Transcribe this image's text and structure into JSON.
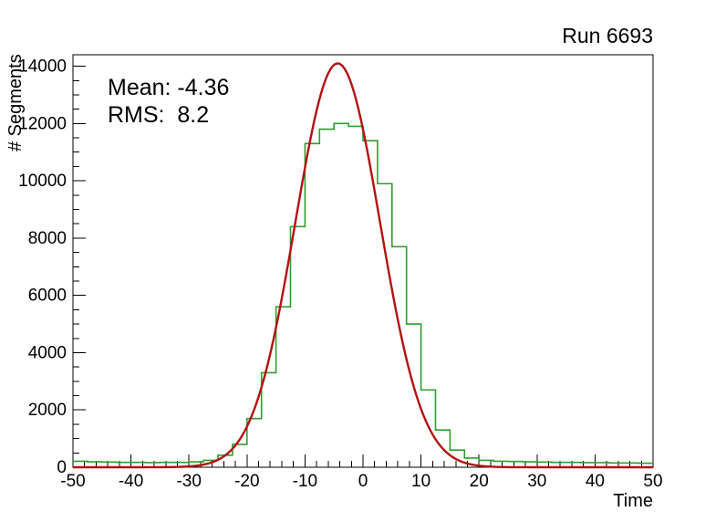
{
  "chart_data": {
    "type": "bar",
    "subtype": "step-histogram-with-gaussian-fit",
    "title": "Run 6693",
    "xlabel": "Time",
    "ylabel": "# Segments",
    "xlim": [
      -50,
      50
    ],
    "ylim": [
      0,
      14400
    ],
    "x_major_ticks": [
      -50,
      -40,
      -30,
      -20,
      -10,
      0,
      10,
      20,
      30,
      40,
      50
    ],
    "x_minor_step": 2,
    "y_major_ticks": [
      0,
      2000,
      4000,
      6000,
      8000,
      10000,
      12000,
      14000
    ],
    "y_minor_step": 500,
    "grid": false,
    "legend": "none",
    "annotations": [
      "Mean: -4.36",
      "RMS:  8.2"
    ],
    "axis_color": "#000000",
    "histogram": {
      "color": "#2f9e2f",
      "bin_start": -50,
      "bin_width": 2.5,
      "counts": [
        210,
        190,
        180,
        170,
        170,
        160,
        170,
        170,
        190,
        240,
        420,
        800,
        1700,
        3300,
        5600,
        8400,
        11300,
        11800,
        12000,
        11900,
        11400,
        9900,
        7700,
        5000,
        2700,
        1300,
        600,
        320,
        240,
        210,
        200,
        190,
        180,
        170,
        170,
        160,
        160,
        150,
        150,
        140
      ]
    },
    "fit": {
      "shape": "gaussian",
      "color": "#b21212",
      "amplitude": 14100,
      "mean": -4.36,
      "sigma": 7.3
    }
  }
}
